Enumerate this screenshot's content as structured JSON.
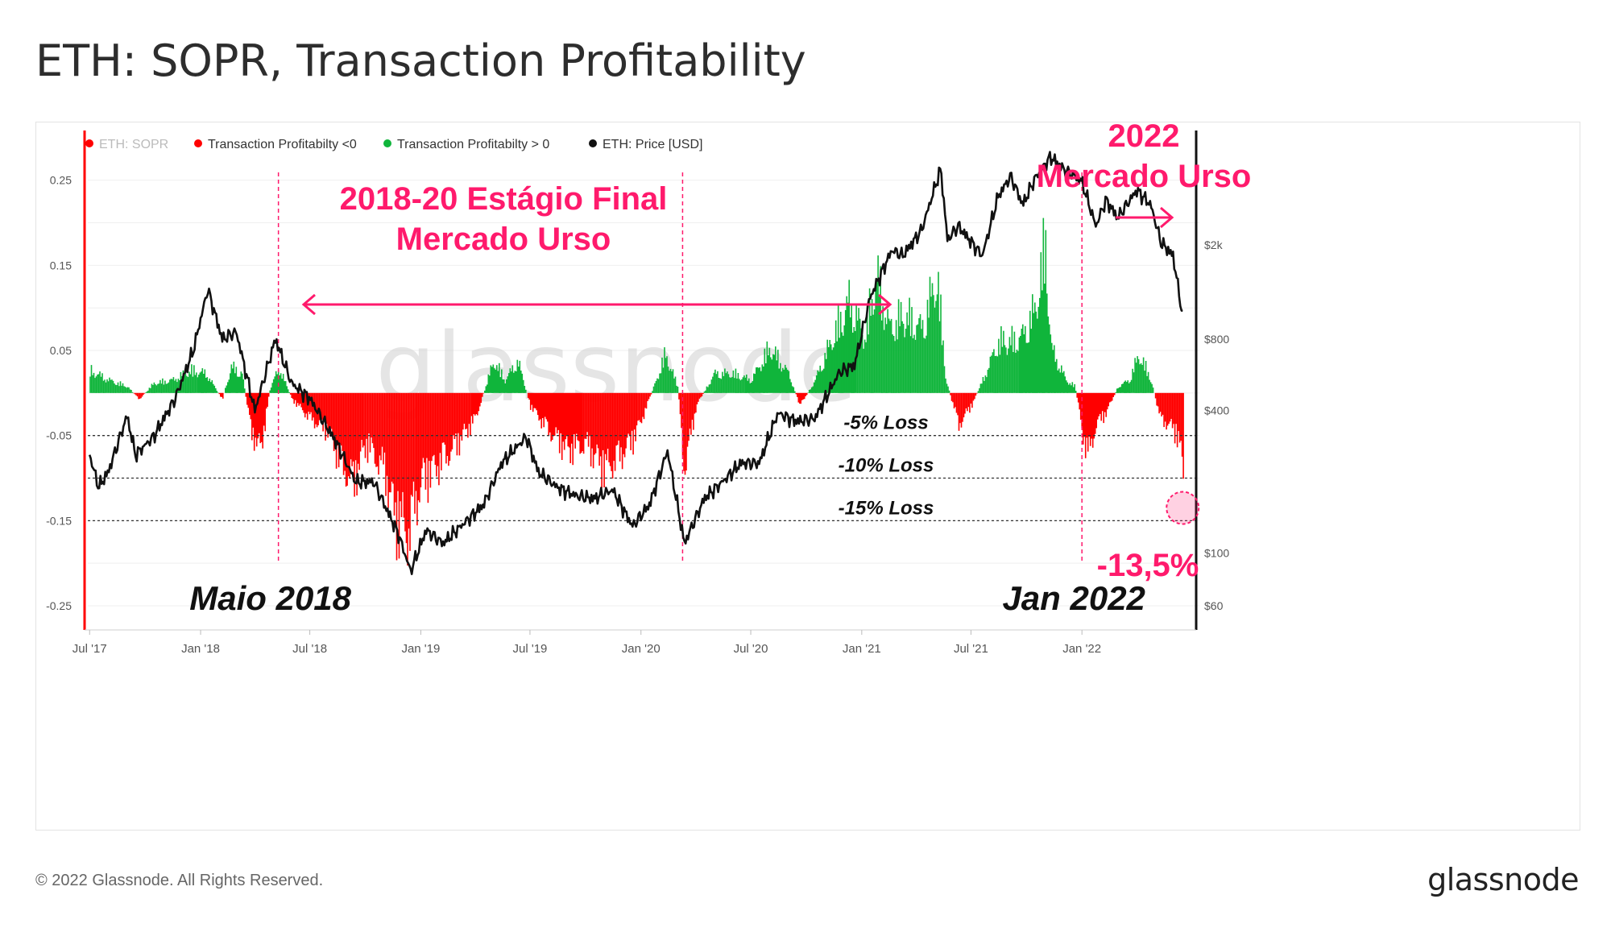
{
  "page": {
    "title": "ETH: SOPR, Transaction Profitability",
    "copyright": "© 2022 Glassnode. All Rights Reserved.",
    "brand": "glassnode",
    "watermark": "glassnode"
  },
  "colors": {
    "red": "#ff0000",
    "green": "#10b53b",
    "black": "#111111",
    "annotation": "#ff1a6c",
    "legend_muted": "#bbbbbb",
    "grid": "#efefef"
  },
  "chart_data": {
    "type": "area",
    "legend": [
      {
        "label": "ETH: SOPR",
        "color": "#ff0000",
        "muted": true
      },
      {
        "label": "Transaction Profitabilty <0",
        "color": "#ff0000",
        "muted": false
      },
      {
        "label": "Transaction Profitabilty > 0",
        "color": "#10b53b",
        "muted": false
      },
      {
        "label": "ETH: Price [USD]",
        "color": "#111111",
        "muted": false
      }
    ],
    "x_ticks": [
      "Jul '17",
      "Jan '18",
      "Jul '18",
      "Jan '19",
      "Jul '19",
      "Jan '20",
      "Jul '20",
      "Jan '21",
      "Jul '21",
      "Jan '22"
    ],
    "x_tick_dates": [
      "2017-07-01",
      "2018-01-01",
      "2018-07-01",
      "2019-01-01",
      "2019-07-01",
      "2020-01-01",
      "2020-07-01",
      "2021-01-01",
      "2021-07-01",
      "2022-01-01"
    ],
    "x_range": [
      "2017-06-28",
      "2022-06-18"
    ],
    "y_left_ticks": [
      "0.25",
      "0.15",
      "0.05",
      "-0.05",
      "-0.15",
      "-0.25"
    ],
    "y_left_tick_values": [
      0.25,
      0.15,
      0.05,
      -0.05,
      -0.15,
      -0.25
    ],
    "y_left_range": [
      -0.25,
      0.28
    ],
    "y_right_ticks": [
      "$2k",
      "$800",
      "$400",
      "$100",
      "$60"
    ],
    "y_right_tick_values": [
      2000,
      800,
      400,
      100,
      60
    ],
    "y_right_scale": "log",
    "y_right_range": [
      60,
      4800
    ],
    "profitability": {
      "dates": [
        "2017-07-01",
        "2017-08-01",
        "2017-09-01",
        "2017-09-20",
        "2017-10-15",
        "2017-11-15",
        "2017-12-15",
        "2018-01-10",
        "2018-02-05",
        "2018-02-20",
        "2018-03-10",
        "2018-03-25",
        "2018-04-10",
        "2018-04-25",
        "2018-05-10",
        "2018-06-01",
        "2018-07-01",
        "2018-08-01",
        "2018-08-20",
        "2018-09-10",
        "2018-10-01",
        "2018-11-01",
        "2018-11-20",
        "2018-12-10",
        "2019-01-01",
        "2019-02-01",
        "2019-03-01",
        "2019-04-01",
        "2019-05-01",
        "2019-05-20",
        "2019-06-10",
        "2019-07-01",
        "2019-08-01",
        "2019-09-01",
        "2019-10-01",
        "2019-11-01",
        "2019-11-25",
        "2019-12-20",
        "2020-01-10",
        "2020-02-10",
        "2020-03-01",
        "2020-03-12",
        "2020-04-01",
        "2020-05-01",
        "2020-06-01",
        "2020-07-01",
        "2020-08-01",
        "2020-09-01",
        "2020-09-20",
        "2020-10-15",
        "2020-11-15",
        "2020-12-10",
        "2021-01-05",
        "2021-01-25",
        "2021-02-15",
        "2021-03-10",
        "2021-04-10",
        "2021-05-05",
        "2021-05-20",
        "2021-06-10",
        "2021-07-01",
        "2021-07-20",
        "2021-08-15",
        "2021-09-10",
        "2021-09-25",
        "2021-10-15",
        "2021-11-01",
        "2021-11-10",
        "2021-11-20",
        "2021-12-05",
        "2021-12-20",
        "2022-01-01",
        "2022-01-10",
        "2022-01-24",
        "2022-02-10",
        "2022-03-01",
        "2022-03-20",
        "2022-04-05",
        "2022-04-25",
        "2022-05-10",
        "2022-05-25",
        "2022-06-10",
        "2022-06-17"
      ],
      "values": [
        0.035,
        0.02,
        0.01,
        -0.01,
        0.015,
        0.02,
        0.035,
        0.03,
        -0.01,
        0.04,
        0.03,
        -0.06,
        -0.09,
        0.005,
        0.04,
        -0.01,
        -0.04,
        -0.06,
        -0.11,
        -0.14,
        -0.08,
        -0.12,
        -0.2,
        -0.22,
        -0.14,
        -0.11,
        -0.08,
        -0.04,
        0.05,
        0.02,
        0.05,
        -0.02,
        -0.06,
        -0.09,
        -0.08,
        -0.12,
        -0.1,
        -0.07,
        -0.02,
        0.06,
        0.01,
        -0.12,
        -0.02,
        0.03,
        0.03,
        0.02,
        0.07,
        0.03,
        -0.02,
        0.02,
        0.09,
        0.14,
        0.09,
        0.18,
        0.1,
        0.12,
        0.1,
        0.18,
        0.02,
        -0.05,
        -0.02,
        0.02,
        0.08,
        0.08,
        0.09,
        0.13,
        0.23,
        0.07,
        0.05,
        0.02,
        0.01,
        -0.06,
        -0.1,
        -0.05,
        -0.03,
        0.01,
        0.02,
        0.06,
        0.02,
        -0.04,
        -0.05,
        -0.07,
        -0.135
      ]
    },
    "price": {
      "dates": [
        "2017-07-01",
        "2017-07-16",
        "2017-08-01",
        "2017-09-01",
        "2017-09-15",
        "2017-10-15",
        "2017-11-20",
        "2017-12-20",
        "2018-01-13",
        "2018-02-06",
        "2018-03-01",
        "2018-04-01",
        "2018-05-05",
        "2018-06-01",
        "2018-07-01",
        "2018-08-15",
        "2018-09-15",
        "2018-10-15",
        "2018-11-25",
        "2018-12-15",
        "2019-01-10",
        "2019-02-07",
        "2019-03-15",
        "2019-04-15",
        "2019-05-15",
        "2019-06-25",
        "2019-07-15",
        "2019-08-15",
        "2019-09-15",
        "2019-10-15",
        "2019-11-15",
        "2019-12-18",
        "2020-01-15",
        "2020-02-14",
        "2020-03-13",
        "2020-04-15",
        "2020-05-15",
        "2020-06-15",
        "2020-07-15",
        "2020-08-15",
        "2020-09-15",
        "2020-10-15",
        "2020-11-25",
        "2020-12-20",
        "2021-01-15",
        "2021-02-20",
        "2021-03-10",
        "2021-04-10",
        "2021-05-12",
        "2021-05-23",
        "2021-06-10",
        "2021-07-20",
        "2021-08-15",
        "2021-09-05",
        "2021-09-25",
        "2021-10-15",
        "2021-11-10",
        "2021-12-05",
        "2021-12-20",
        "2022-01-01",
        "2022-01-24",
        "2022-02-10",
        "2022-03-01",
        "2022-04-02",
        "2022-04-25",
        "2022-05-12",
        "2022-06-01",
        "2022-06-17"
      ],
      "values": [
        260,
        190,
        220,
        380,
        260,
        310,
        450,
        720,
        1300,
        800,
        860,
        400,
        800,
        520,
        450,
        290,
        200,
        200,
        120,
        84,
        125,
        110,
        135,
        160,
        240,
        310,
        220,
        190,
        175,
        170,
        185,
        130,
        160,
        270,
        110,
        170,
        200,
        240,
        240,
        390,
        360,
        370,
        580,
        620,
        1200,
        1900,
        1800,
        2300,
        4200,
        2100,
        2400,
        1800,
        3200,
        3900,
        2950,
        3800,
        4700,
        4100,
        3900,
        3700,
        2400,
        3100,
        2600,
        3400,
        2950,
        2050,
        1800,
        1000
      ]
    },
    "threshold_lines": [
      {
        "value": -0.05,
        "label": "-5% Loss"
      },
      {
        "value": -0.1,
        "label": "-10% Loss"
      },
      {
        "value": -0.15,
        "label": "-15% Loss"
      }
    ],
    "event_lines": [
      {
        "date": "2018-05-10",
        "label": "Maio 2018"
      },
      {
        "date": "2020-03-10",
        "label": ""
      },
      {
        "date": "2022-01-01",
        "label": "Jan 2022"
      }
    ],
    "annotations": {
      "bear_2018": {
        "line1": "2018-20 Estágio Final",
        "line2": "Mercado Urso"
      },
      "bear_2022": {
        "line1": "2022",
        "line2": "Mercado Urso"
      },
      "latest_value": "-13,5%"
    }
  }
}
